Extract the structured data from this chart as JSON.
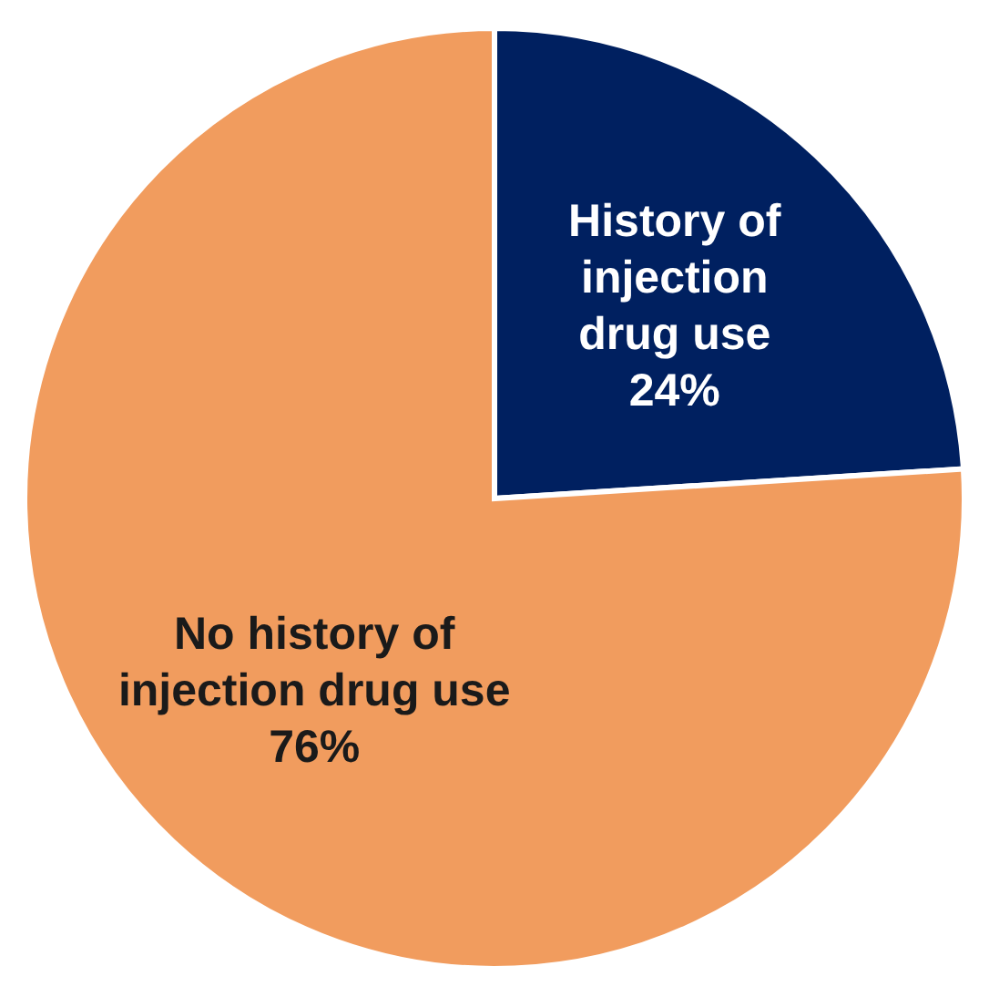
{
  "chart_data": {
    "type": "pie",
    "categories": [
      "History of injection drug use",
      "No history of injection drug use"
    ],
    "values": [
      24,
      76
    ],
    "value_labels": [
      "24%",
      "76%"
    ],
    "colors": [
      "#002060",
      "#f19c5e"
    ]
  }
}
